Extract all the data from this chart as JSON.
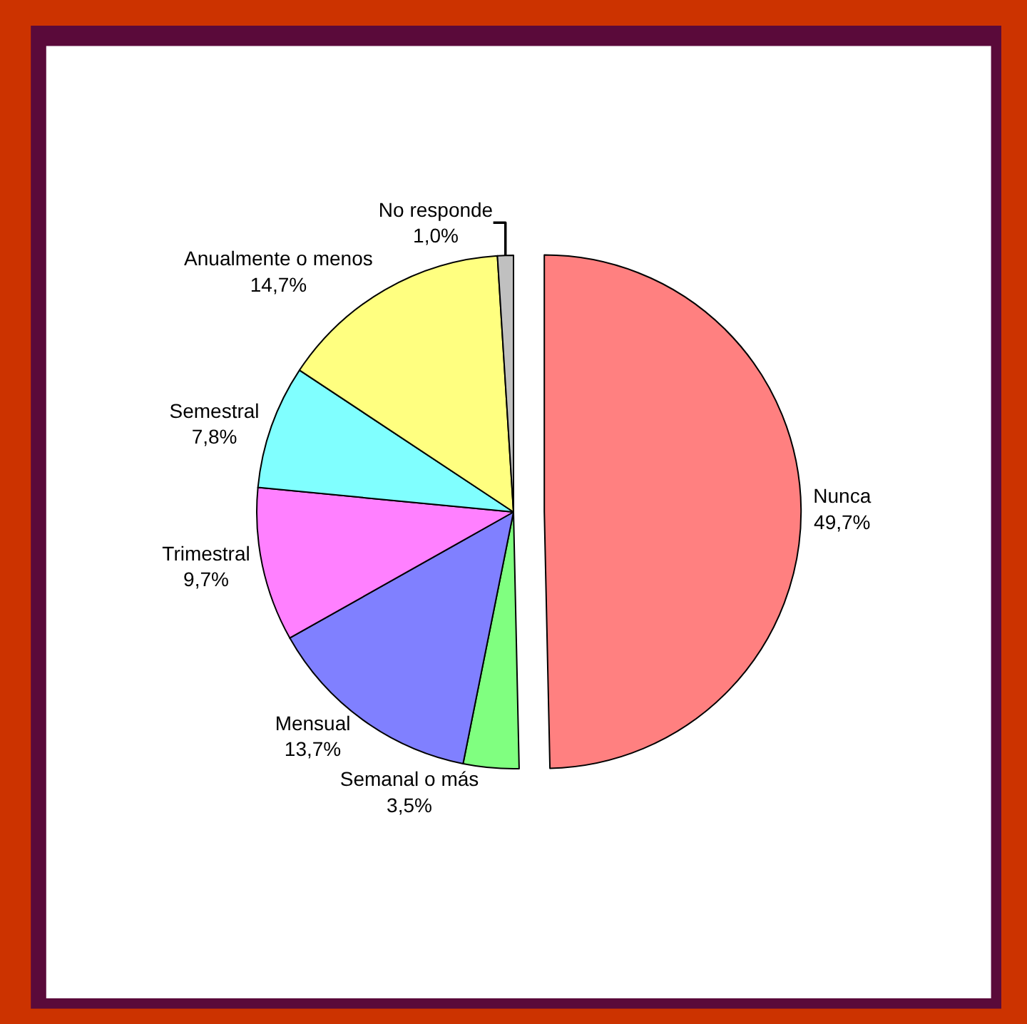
{
  "chart_data": {
    "type": "pie",
    "categories": [
      "Nunca",
      "Semanal o más",
      "Mensual",
      "Trimestral",
      "Semestral",
      "Anualmente o menos",
      "No responde"
    ],
    "values": [
      49.7,
      3.5,
      13.7,
      9.7,
      7.8,
      14.7,
      1.0
    ],
    "value_labels": [
      "49,7%",
      "3,5%",
      "13,7%",
      "9,7%",
      "7,8%",
      "14,7%",
      "1,0%"
    ],
    "colors": [
      "#ff8080",
      "#80ff80",
      "#8080ff",
      "#ff80ff",
      "#80ffff",
      "#ffff80",
      "#c0c0c0"
    ],
    "legend": false
  }
}
